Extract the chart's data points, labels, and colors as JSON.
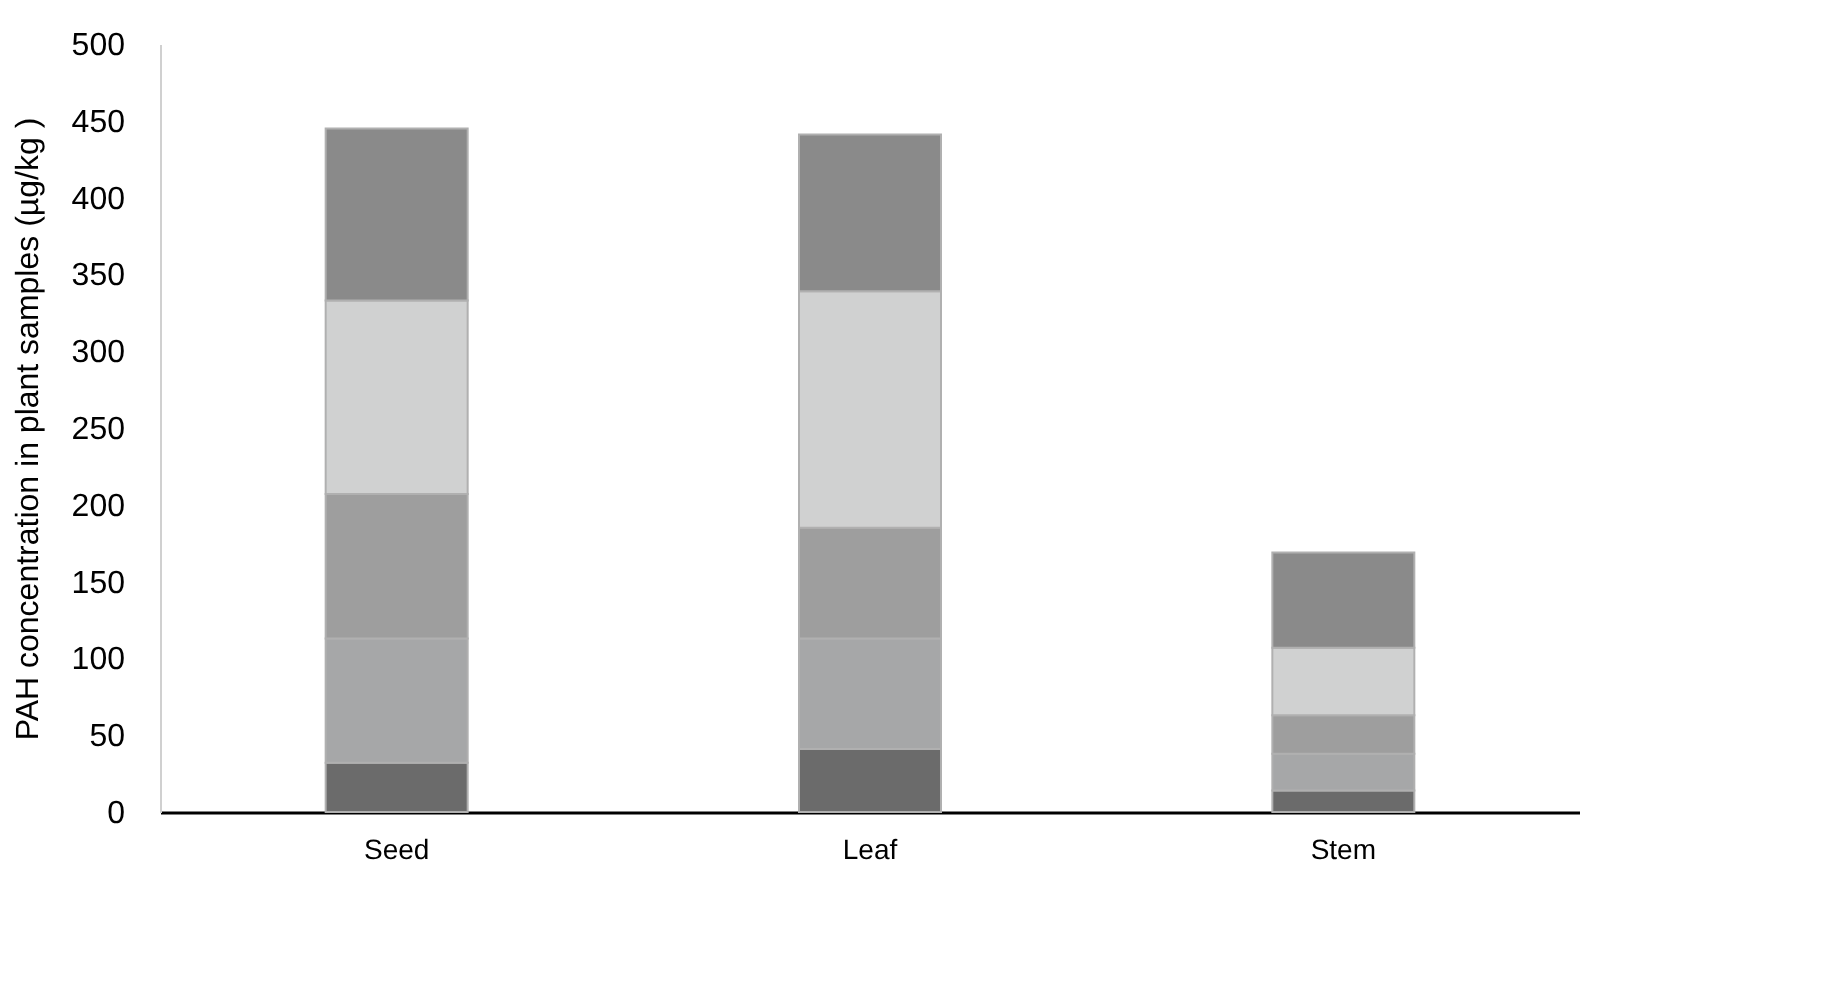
{
  "chart_data": {
    "type": "bar",
    "stacked": true,
    "ylabel": "PAH concentration in plant samples (µg/kg )",
    "categories": [
      "Seed",
      "Leaf",
      "Stem"
    ],
    "series": [
      {
        "color": "#6b6b6b",
        "values": [
          32,
          41,
          14
        ]
      },
      {
        "color": "#a6a7a8",
        "values": [
          81,
          72,
          24
        ]
      },
      {
        "color": "#9e9e9e",
        "values": [
          94,
          72,
          25
        ]
      },
      {
        "color": "#d0d1d1",
        "values": [
          126,
          154,
          44
        ]
      },
      {
        "color": "#8a8a8a",
        "values": [
          112,
          102,
          62
        ]
      }
    ],
    "ylim": [
      0,
      500
    ],
    "yticks": [
      0,
      50,
      100,
      150,
      200,
      250,
      300,
      350,
      400,
      450,
      500
    ],
    "grid": false
  }
}
